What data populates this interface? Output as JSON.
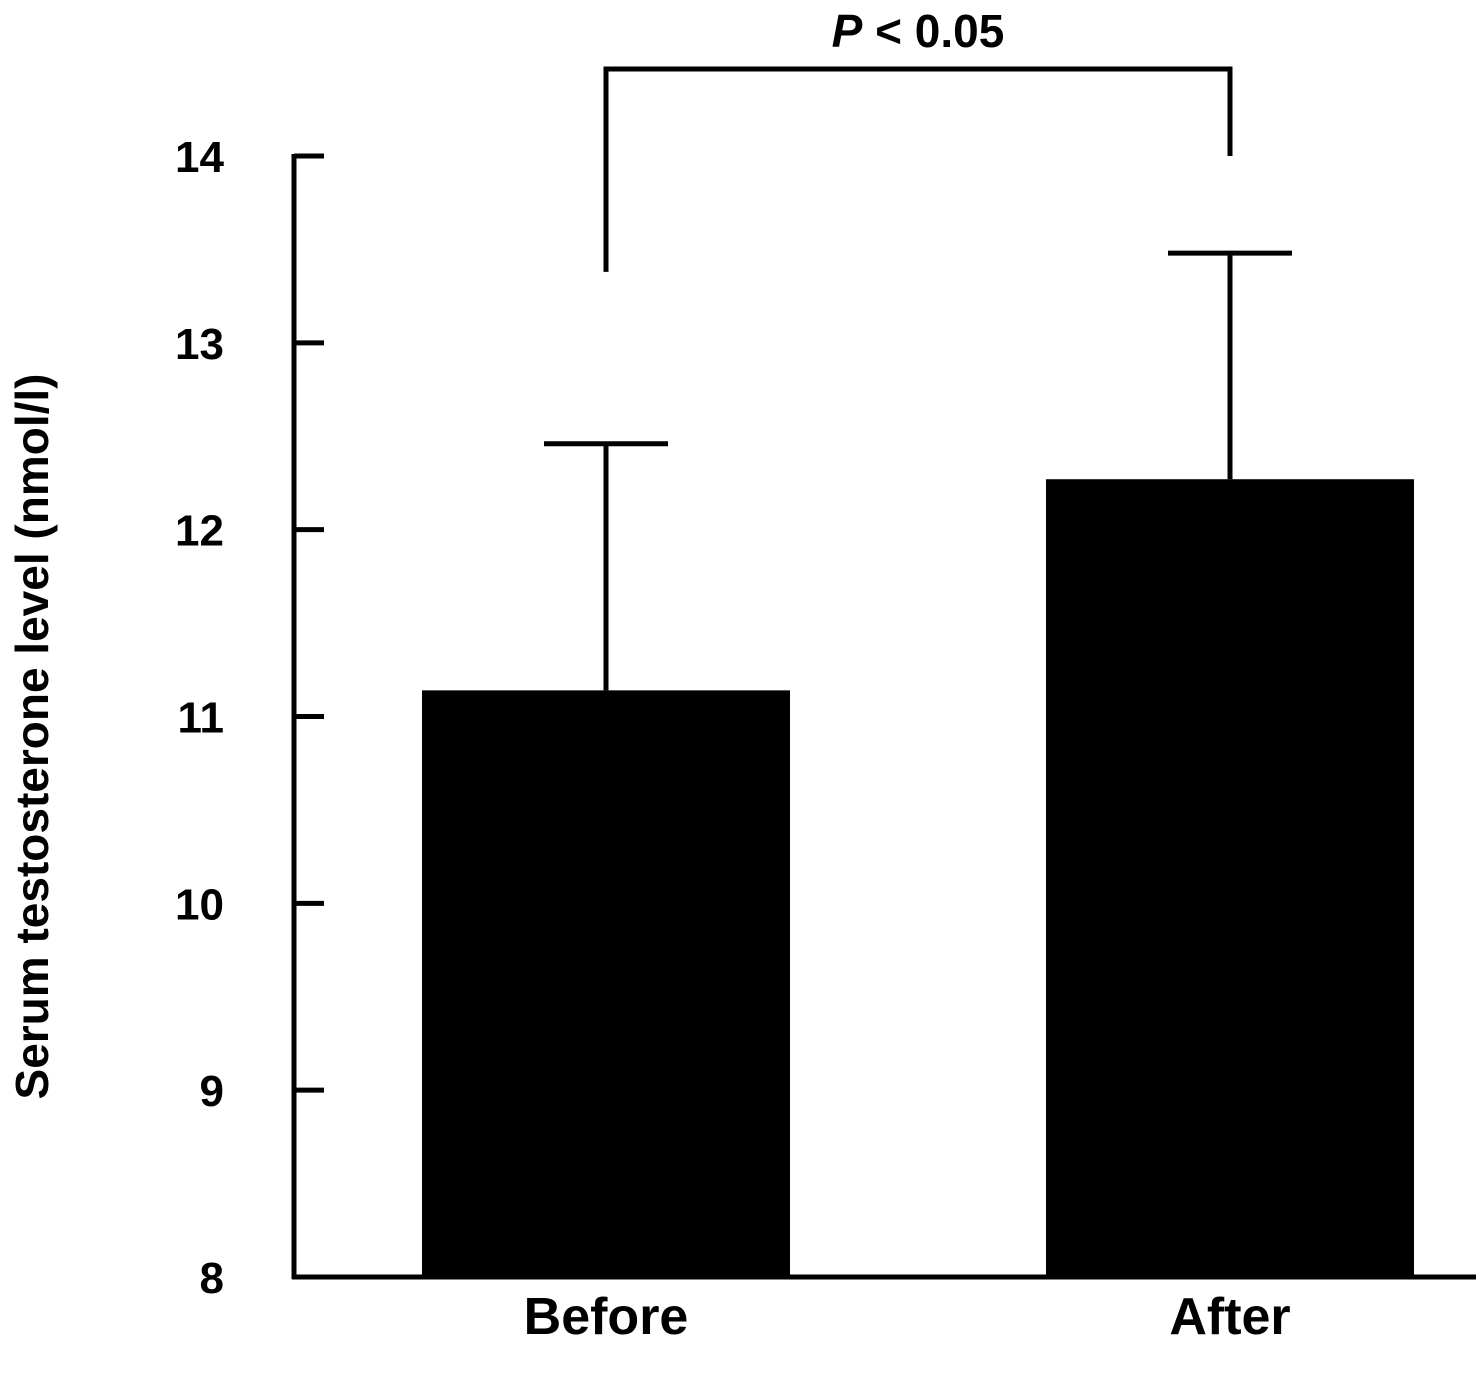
{
  "chart_data": {
    "type": "bar",
    "categories": [
      "Before",
      "After"
    ],
    "values": [
      11.14,
      12.27
    ],
    "error_upper": [
      12.46,
      13.48
    ],
    "ylabel": "Serum testosterone level (nmol/l)",
    "ylim": [
      8,
      14
    ],
    "yticks": [
      "8",
      "9",
      "10",
      "11",
      "12",
      "13",
      "14"
    ],
    "grid": false,
    "bar_color": "#000000",
    "significance": {
      "between": [
        "Before",
        "After"
      ],
      "p_symbol": "P",
      "p_text": " < 0.05"
    }
  }
}
